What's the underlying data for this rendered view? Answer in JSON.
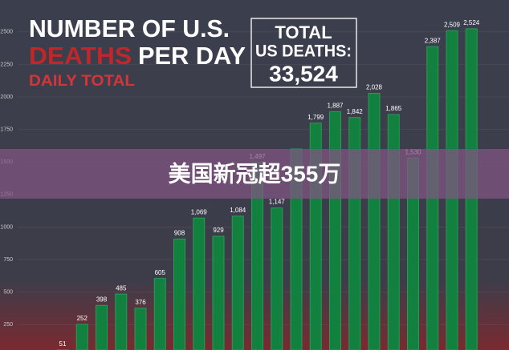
{
  "banner": "美国新冠超355万",
  "chart_data": {
    "type": "bar",
    "title": [
      "NUMBER OF U.S.",
      "DEATHS",
      "PER DAY"
    ],
    "subtitle": "DAILY TOTAL",
    "annotation": [
      "TOTAL",
      "US DEATHS:",
      "33,524"
    ],
    "categories": [
      null,
      null,
      null,
      null,
      null,
      null,
      null,
      null,
      null,
      null,
      null,
      null,
      null,
      null,
      null,
      null,
      null,
      null,
      null,
      null,
      null,
      null
    ],
    "values": [
      51,
      252,
      398,
      485,
      376,
      605,
      908,
      1069,
      929,
      1084,
      1497,
      1147,
      1600,
      1799,
      1887,
      1842,
      2028,
      1865,
      1530,
      2387,
      2509,
      2524
    ],
    "value_labels": [
      "51",
      "252",
      "398",
      "485",
      "376",
      "605",
      "908",
      "1,069",
      "929",
      "1,084",
      "1,497",
      "1,147",
      null,
      "1,799",
      "1,887",
      "1,842",
      "2,028",
      "1,865",
      "1,530",
      "2,387",
      "2,509",
      "2,524"
    ],
    "color": "#12803f",
    "ylim": [
      55,
      2745
    ],
    "yticks": [
      250,
      500,
      750,
      1000,
      1250,
      1500,
      1750,
      2000,
      2250,
      2500
    ],
    "grid": true
  }
}
